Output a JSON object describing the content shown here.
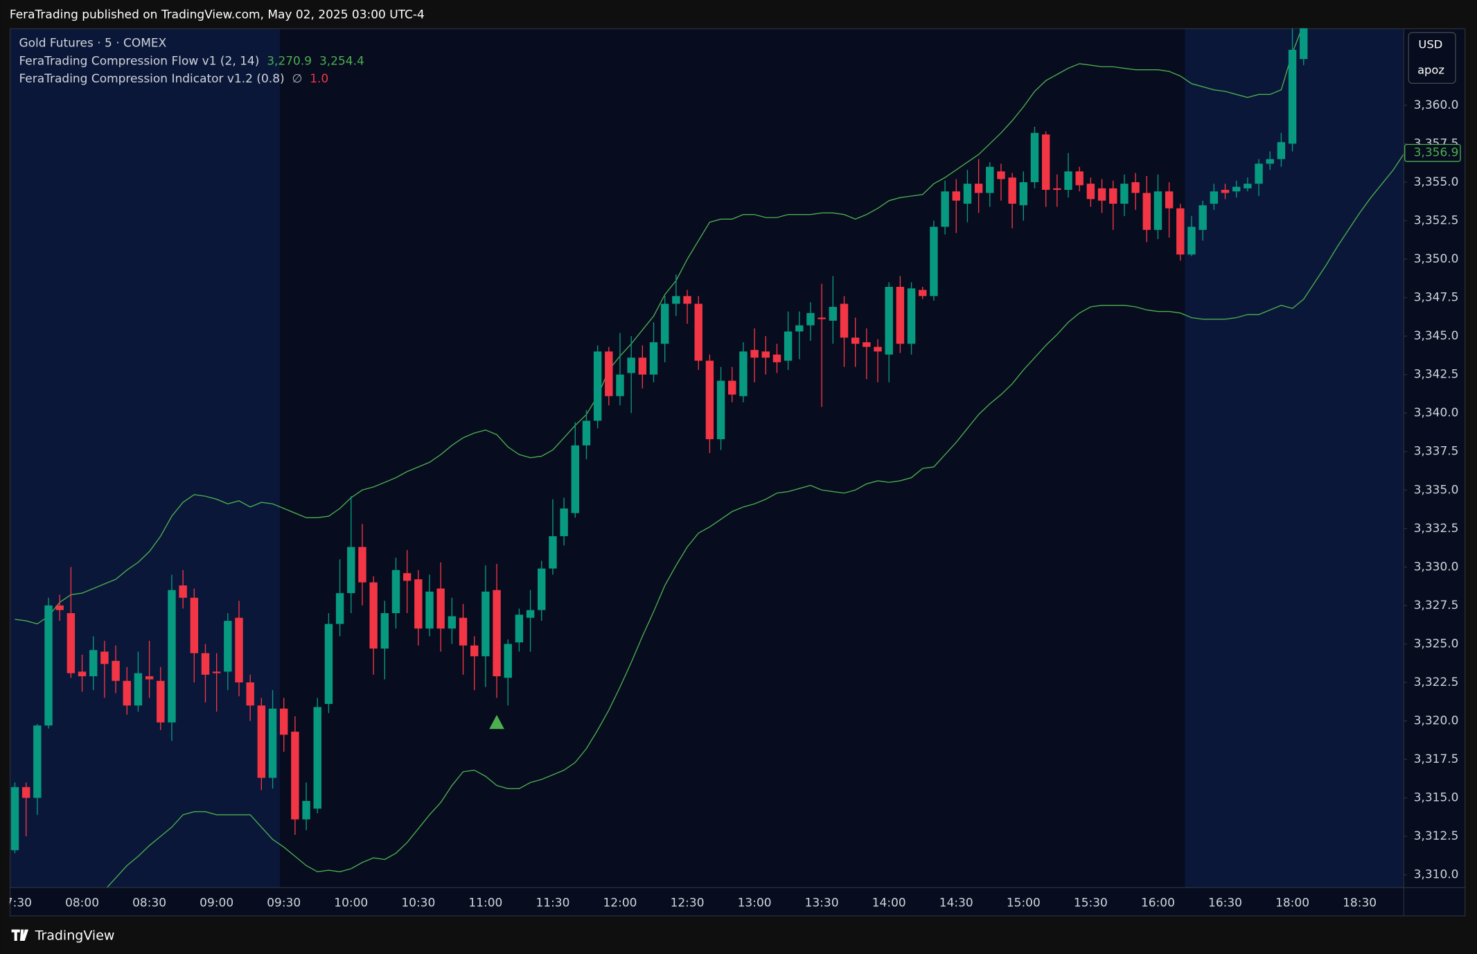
{
  "header": {
    "title": "FeraTrading published on TradingView.com, May 02, 2025 03:00 UTC-4"
  },
  "legend": {
    "symbol": "Gold Futures · 5 · COMEX",
    "flow": {
      "name": "FeraTrading Compression Flow v1 (2, 14)",
      "values": [
        "3,270.9",
        "3,254.4"
      ]
    },
    "indicator": {
      "name": "FeraTrading Compression Indicator v1.2 (0.8)",
      "values": [
        "∅",
        "1.0"
      ]
    }
  },
  "axis_box": {
    "currency": "USD",
    "user": "apoz"
  },
  "footer": {
    "brand": "TradingView"
  },
  "chart_data": {
    "type": "candlestick",
    "up_color": "#089981",
    "down_color": "#f23645",
    "ylim": [
      3309.2,
      3365.0
    ],
    "yticks": [
      {
        "value": 3310,
        "label": "3,310.0"
      },
      {
        "value": 3312.5,
        "label": "3,312.5"
      },
      {
        "value": 3315,
        "label": "3,315.0"
      },
      {
        "value": 3317.5,
        "label": "3,317.5"
      },
      {
        "value": 3320,
        "label": "3,320.0"
      },
      {
        "value": 3322.5,
        "label": "3,322.5"
      },
      {
        "value": 3325,
        "label": "3,325.0"
      },
      {
        "value": 3327.5,
        "label": "3,327.5"
      },
      {
        "value": 3330,
        "label": "3,330.0"
      },
      {
        "value": 3332.5,
        "label": "3,332.5"
      },
      {
        "value": 3335,
        "label": "3,335.0"
      },
      {
        "value": 3337.5,
        "label": "3,337.5"
      },
      {
        "value": 3340,
        "label": "3,340.0"
      },
      {
        "value": 3342.5,
        "label": "3,342.5"
      },
      {
        "value": 3345,
        "label": "3,345.0"
      },
      {
        "value": 3347.5,
        "label": "3,347.5"
      },
      {
        "value": 3350,
        "label": "3,350.0"
      },
      {
        "value": 3352.5,
        "label": "3,352.5"
      },
      {
        "value": 3355,
        "label": "3,355.0"
      },
      {
        "value": 3357.5,
        "label": "3,357.5"
      },
      {
        "value": 3360,
        "label": "3,360.0"
      }
    ],
    "categories": [
      "07:30",
      null,
      null,
      null,
      null,
      null,
      "08:00",
      null,
      null,
      null,
      null,
      null,
      "08:30",
      null,
      null,
      null,
      null,
      null,
      "09:00",
      null,
      null,
      null,
      null,
      null,
      "09:30",
      null,
      null,
      null,
      null,
      null,
      "10:00",
      null,
      null,
      null,
      null,
      null,
      "10:30",
      null,
      null,
      null,
      null,
      null,
      "11:00",
      null,
      null,
      null,
      null,
      null,
      "11:30",
      null,
      null,
      null,
      null,
      null,
      "12:00",
      null,
      null,
      null,
      null,
      null,
      "12:30",
      null,
      null,
      null,
      null,
      null,
      "13:00",
      null,
      null,
      null,
      null,
      null,
      "13:30",
      null,
      null,
      null,
      null,
      null,
      "14:00",
      null,
      null,
      null,
      null,
      null,
      "14:30",
      null,
      null,
      null,
      null,
      null,
      "15:00",
      null,
      null,
      null,
      null,
      null,
      "15:30",
      null,
      null,
      null,
      null,
      null,
      "16:00",
      null,
      null,
      null,
      null,
      null,
      "16:30",
      null,
      null,
      null,
      null,
      null,
      "18:00",
      null,
      null,
      null,
      null,
      null,
      "18:30",
      null,
      null,
      null,
      null
    ],
    "open": [
      3311.6,
      3315.7,
      3315.0,
      3319.7,
      3327.5,
      3327.0,
      3323.2,
      3322.9,
      3324.5,
      3323.9,
      3322.6,
      3321.0,
      3322.9,
      3322.6,
      3319.9,
      3328.8,
      3328.0,
      3324.4,
      3323.2,
      3323.2,
      3326.7,
      3322.5,
      3321.0,
      3316.3,
      3320.8,
      3319.3,
      3313.6,
      3314.3,
      3321.1,
      3326.3,
      3328.3,
      3331.3,
      3329.0,
      3324.7,
      3327.0,
      3329.6,
      3329.2,
      3326.0,
      3328.6,
      3326.0,
      3326.7,
      3324.9,
      3324.2,
      3328.5,
      3322.8,
      3325.1,
      3326.7,
      3327.2,
      3329.9,
      3332.0,
      3333.5,
      3337.9,
      3339.5,
      3344.0,
      3341.1,
      3342.6,
      3343.6,
      3342.5,
      3344.5,
      3347.1,
      3347.6,
      3347.1,
      3343.4,
      3338.3,
      3342.1,
      3341.1,
      3344.1,
      3344.0,
      3343.8,
      3343.4,
      3345.3,
      3345.7,
      3346.2,
      3346.0,
      3347.1,
      3344.9,
      3344.6,
      3344.3,
      3343.8,
      3348.2,
      3344.5,
      3348.0,
      3347.6,
      3352.1,
      3354.4,
      3353.6,
      3354.9,
      3354.3,
      3355.7,
      3355.3,
      3353.5,
      3355.0,
      3358.1,
      3354.6,
      3354.5,
      3355.7,
      3354.9,
      3354.6,
      3354.6,
      3353.6,
      3355.0,
      3354.3,
      3351.9,
      3354.4,
      3353.3,
      3350.3,
      3351.9,
      3353.6,
      3354.5,
      3354.4,
      3354.6,
      3354.9,
      3356.2,
      3356.5,
      3357.5,
      3363.0,
      null,
      null,
      null,
      null,
      null,
      null,
      null,
      null,
      null
    ],
    "high": [
      3316.0,
      3316.0,
      3319.8,
      3328.0,
      3328.2,
      3330.0,
      3324.3,
      3325.5,
      3325.2,
      3324.9,
      3323.5,
      3324.5,
      3325.2,
      3323.5,
      3329.5,
      3329.8,
      3328.6,
      3325.0,
      3324.4,
      3327.0,
      3327.8,
      3323.0,
      3321.5,
      3322.0,
      3321.5,
      3320.3,
      3316.0,
      3321.5,
      3327.0,
      3330.5,
      3334.6,
      3332.8,
      3329.4,
      3327.8,
      3330.6,
      3331.1,
      3329.8,
      3329.5,
      3330.3,
      3328.0,
      3327.6,
      3325.5,
      3330.1,
      3330.2,
      3325.3,
      3327.3,
      3328.5,
      3330.4,
      3334.4,
      3334.5,
      3339.4,
      3340.2,
      3344.4,
      3344.3,
      3345.2,
      3345.0,
      3344.4,
      3345.9,
      3347.6,
      3349.0,
      3348.0,
      3347.6,
      3343.8,
      3343.0,
      3343.0,
      3344.6,
      3345.5,
      3345.0,
      3344.5,
      3346.6,
      3346.6,
      3347.2,
      3348.4,
      3348.9,
      3347.6,
      3346.2,
      3345.5,
      3344.8,
      3348.5,
      3348.9,
      3348.5,
      3348.2,
      3352.5,
      3355.1,
      3355.2,
      3355.8,
      3356.5,
      3356.3,
      3356.2,
      3355.6,
      3355.7,
      3358.6,
      3358.3,
      3355.5,
      3356.9,
      3356.0,
      3355.3,
      3355.2,
      3355.1,
      3355.5,
      3355.6,
      3355.4,
      3355.5,
      3355.0,
      3353.6,
      3352.8,
      3353.8,
      3354.9,
      3354.9,
      3355.1,
      3355.3,
      3356.5,
      3357.0,
      3358.2,
      3365.0,
      3366.0,
      null,
      null,
      null,
      null,
      null,
      null,
      null,
      null,
      null
    ],
    "low": [
      3311.4,
      3312.5,
      3313.9,
      3319.5,
      3326.5,
      3322.8,
      3321.9,
      3322.0,
      3321.5,
      3321.8,
      3320.4,
      3320.6,
      3321.5,
      3319.4,
      3318.7,
      3327.3,
      3322.5,
      3321.2,
      3320.6,
      3322.0,
      3321.6,
      3320.0,
      3315.5,
      3315.6,
      3318.0,
      3312.6,
      3312.9,
      3314.0,
      3320.5,
      3325.5,
      3327.0,
      3327.5,
      3323.0,
      3322.7,
      3326.0,
      3327.0,
      3324.9,
      3325.5,
      3324.5,
      3325.0,
      3323.0,
      3322.0,
      3322.2,
      3321.5,
      3321.0,
      3324.5,
      3324.5,
      3326.5,
      3329.5,
      3331.4,
      3333.2,
      3337.0,
      3339.0,
      3340.5,
      3340.5,
      3340.0,
      3341.6,
      3342.0,
      3343.3,
      3346.3,
      3345.8,
      3342.8,
      3337.4,
      3337.6,
      3340.7,
      3340.7,
      3342.0,
      3342.5,
      3342.6,
      3342.8,
      3343.5,
      3344.7,
      3340.4,
      3344.5,
      3343.0,
      3343.0,
      3342.2,
      3342.0,
      3342.0,
      3343.9,
      3343.8,
      3347.4,
      3347.3,
      3351.6,
      3351.7,
      3352.4,
      3353.0,
      3353.4,
      3353.8,
      3352.0,
      3352.5,
      3354.6,
      3353.4,
      3353.4,
      3354.0,
      3354.4,
      3353.4,
      3353.0,
      3351.9,
      3352.8,
      3353.2,
      3351.1,
      3351.3,
      3351.4,
      3349.9,
      3350.2,
      3351.2,
      3353.2,
      3353.9,
      3354.0,
      3354.4,
      3354.1,
      3355.8,
      3356.0,
      3357.0,
      3362.6,
      null,
      null,
      null,
      null,
      null,
      null,
      null,
      null,
      null
    ],
    "close": [
      3315.7,
      3315.0,
      3319.7,
      3327.5,
      3327.2,
      3323.1,
      3322.9,
      3324.6,
      3323.7,
      3322.6,
      3321.0,
      3323.1,
      3322.7,
      3319.9,
      3328.5,
      3328.0,
      3324.4,
      3323.0,
      3323.1,
      3326.5,
      3322.5,
      3321.0,
      3316.3,
      3320.8,
      3319.1,
      3313.6,
      3314.8,
      3320.9,
      3326.3,
      3328.3,
      3331.3,
      3329.0,
      3324.7,
      3327.0,
      3329.8,
      3329.1,
      3326.0,
      3328.4,
      3326.0,
      3326.8,
      3324.9,
      3324.2,
      3328.4,
      3322.9,
      3325.0,
      3326.9,
      3327.2,
      3329.9,
      3332.0,
      3333.8,
      3337.9,
      3339.5,
      3344.0,
      3341.1,
      3342.5,
      3343.6,
      3342.5,
      3344.6,
      3347.1,
      3347.6,
      3347.1,
      3343.4,
      3338.3,
      3342.1,
      3341.2,
      3344.0,
      3343.6,
      3343.6,
      3343.3,
      3345.3,
      3345.7,
      3346.5,
      3346.1,
      3346.9,
      3344.9,
      3344.5,
      3344.3,
      3344.0,
      3348.2,
      3344.5,
      3348.1,
      3347.6,
      3352.1,
      3354.4,
      3353.8,
      3354.9,
      3354.3,
      3356.0,
      3355.2,
      3353.6,
      3355.0,
      3358.2,
      3354.5,
      3354.5,
      3355.7,
      3354.8,
      3353.9,
      3353.8,
      3353.6,
      3354.9,
      3354.3,
      3351.9,
      3354.4,
      3353.3,
      3350.3,
      3352.1,
      3353.5,
      3354.4,
      3354.3,
      3354.7,
      3354.9,
      3356.2,
      3356.5,
      3357.6,
      3363.6,
      3365.5,
      null,
      null,
      null,
      null,
      null,
      null,
      null,
      null,
      null
    ],
    "series": [
      {
        "color": "#4caf50",
        "values": [
          3326.6,
          3326.5,
          3326.3,
          3326.8,
          3327.7,
          3328.2,
          3328.3,
          3328.6,
          3328.9,
          3329.2,
          3329.8,
          3330.3,
          3331.0,
          3332.0,
          3333.3,
          3334.2,
          3334.7,
          3334.6,
          3334.4,
          3334.1,
          3334.3,
          3333.9,
          3334.2,
          3334.1,
          3333.8,
          3333.5,
          3333.2,
          3333.2,
          3333.3,
          3333.8,
          3334.5,
          3335.0,
          3335.2,
          3335.5,
          3335.8,
          3336.2,
          3336.5,
          3336.8,
          3337.3,
          3337.9,
          3338.4,
          3338.7,
          3338.9,
          3338.6,
          3337.8,
          3337.3,
          3337.1,
          3337.2,
          3337.6,
          3338.4,
          3339.2,
          3339.9,
          3341.1,
          3342.8,
          3343.7,
          3344.5,
          3345.4,
          3346.3,
          3347.7,
          3348.6,
          3350.0,
          3351.2,
          3352.4,
          3352.6,
          3352.6,
          3352.9,
          3352.9,
          3352.7,
          3352.7,
          3352.9,
          3352.9,
          3352.9,
          3353.0,
          3353.0,
          3352.9,
          3352.6,
          3352.9,
          3353.3,
          3353.8,
          3354.0,
          3354.1,
          3354.2,
          3354.9,
          3355.3,
          3355.8,
          3356.3,
          3356.8,
          3357.5,
          3358.2,
          3359.0,
          3359.9,
          3360.9,
          3361.6,
          3362.0,
          3362.4,
          3362.7,
          3362.6,
          3362.5,
          3362.5,
          3362.4,
          3362.3,
          3362.3,
          3362.3,
          3362.2,
          3361.9,
          3361.4,
          3361.2,
          3361.0,
          3360.9,
          3360.7,
          3360.5,
          3360.7,
          3360.7,
          3361.0,
          3363.4,
          3365.3,
          3365.9,
          null,
          null,
          null,
          null,
          null,
          null,
          null,
          null
        ]
      },
      {
        "color": "#4caf50",
        "values": [
          null,
          null,
          null,
          null,
          null,
          null,
          null,
          null,
          3309.0,
          3309.8,
          3310.6,
          3311.2,
          3311.9,
          3312.5,
          3313.1,
          3313.9,
          3314.1,
          3314.1,
          3313.9,
          3313.9,
          3313.9,
          3313.9,
          3313.1,
          3312.3,
          3311.8,
          3311.2,
          3310.6,
          3310.2,
          3310.3,
          3310.2,
          3310.4,
          3310.8,
          3311.1,
          3311.0,
          3311.4,
          3312.1,
          3313.0,
          3313.9,
          3314.7,
          3315.8,
          3316.7,
          3316.8,
          3316.4,
          3315.8,
          3315.6,
          3315.6,
          3316.0,
          3316.2,
          3316.5,
          3316.8,
          3317.3,
          3318.2,
          3319.4,
          3320.7,
          3322.2,
          3323.8,
          3325.5,
          3327.1,
          3328.8,
          3330.1,
          3331.3,
          3332.2,
          3332.6,
          3333.1,
          3333.6,
          3333.9,
          3334.1,
          3334.4,
          3334.8,
          3334.9,
          3335.1,
          3335.3,
          3335.0,
          3334.9,
          3334.8,
          3335.0,
          3335.4,
          3335.6,
          3335.5,
          3335.6,
          3335.8,
          3336.4,
          3336.5,
          3337.3,
          3338.1,
          3339.0,
          3339.9,
          3340.6,
          3341.2,
          3341.9,
          3342.8,
          3343.6,
          3344.4,
          3345.1,
          3345.9,
          3346.5,
          3346.9,
          3347.0,
          3347.0,
          3347.0,
          3346.9,
          3346.7,
          3346.6,
          3346.6,
          3346.5,
          3346.2,
          3346.1,
          3346.1,
          3346.1,
          3346.2,
          3346.4,
          3346.4,
          3346.7,
          3347.0,
          3346.8,
          3347.4,
          3348.5,
          3349.6,
          3350.8,
          3351.9,
          3353.0,
          3354.0,
          3354.9,
          3355.8,
          3356.9
        ]
      }
    ],
    "signals": [
      {
        "index": 43,
        "value": 3319.9,
        "color": "#4caf50"
      }
    ],
    "last_value": {
      "value": 3356.9,
      "label": "3,356.9",
      "color": "#4caf50"
    }
  }
}
